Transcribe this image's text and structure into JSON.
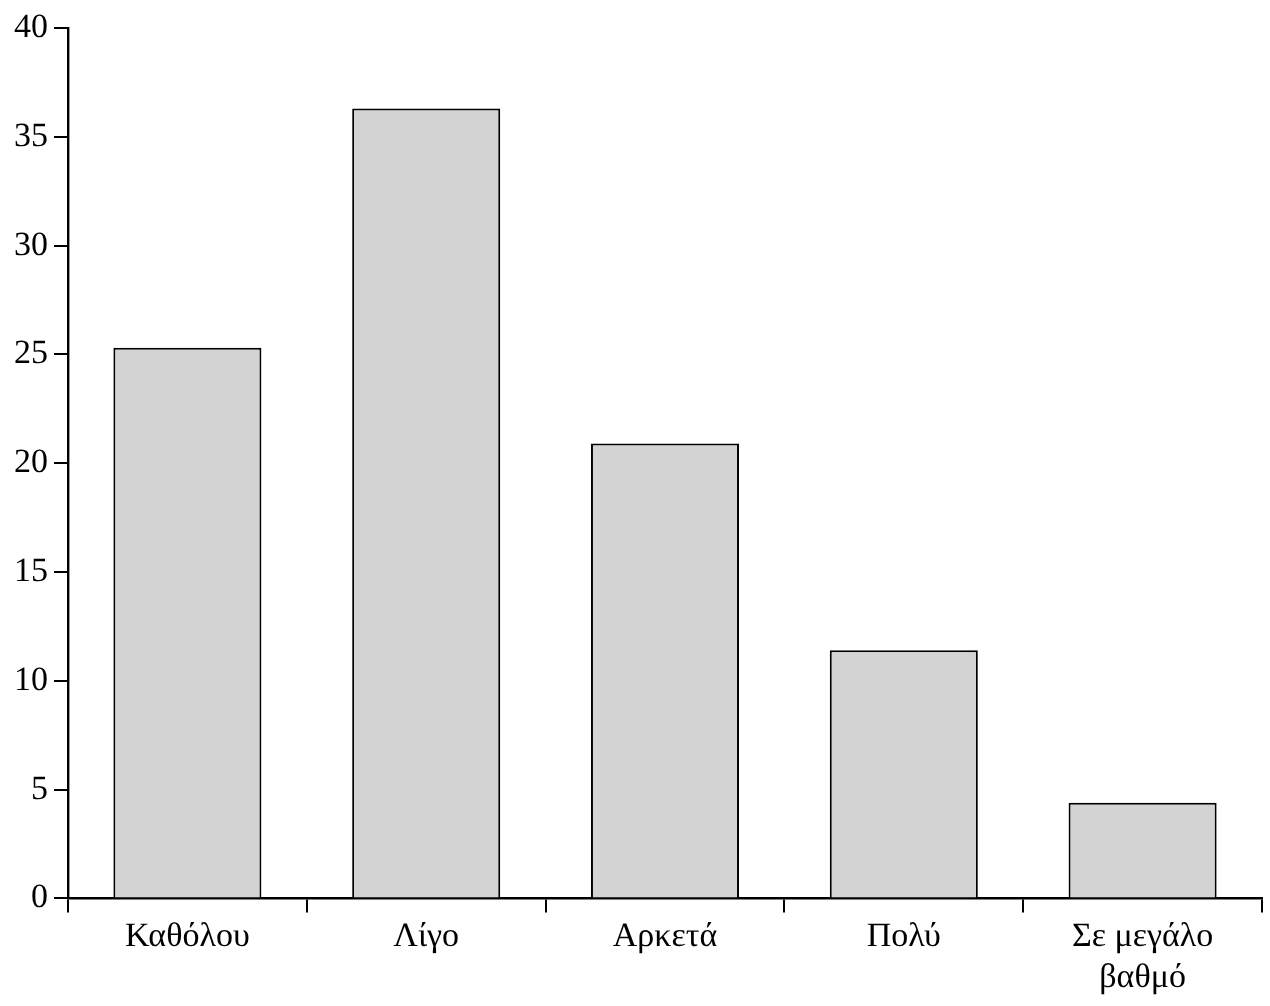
{
  "chart_data": {
    "type": "bar",
    "categories": [
      "Καθόλου",
      "Λίγο",
      "Αρκετά",
      "Πολύ",
      "Σε μεγάλο βαθμό"
    ],
    "values": [
      25.3,
      36.3,
      20.9,
      11.4,
      4.4
    ],
    "color": "#d3d3d3",
    "ylim": [
      0,
      40
    ],
    "yticks": [
      0,
      5,
      10,
      15,
      20,
      25,
      30,
      35,
      40
    ],
    "grid": false,
    "legend": false
  }
}
